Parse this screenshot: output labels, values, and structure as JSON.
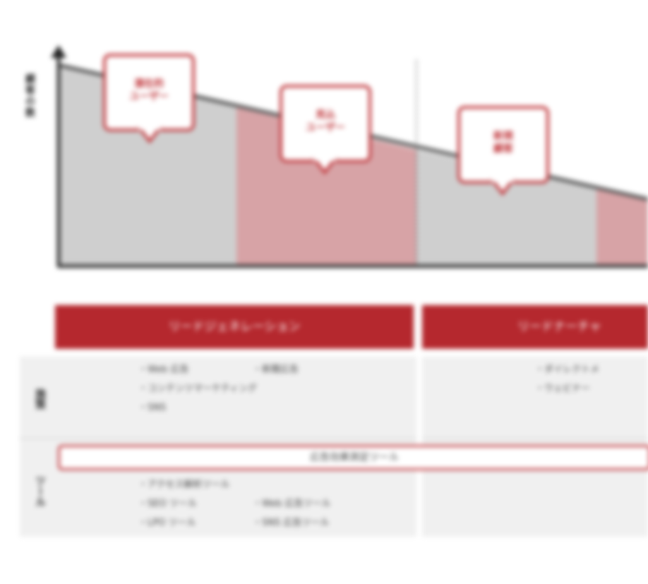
{
  "chart": {
    "yaxis_label": "顧客の数",
    "callouts": [
      {
        "line1": "潜在的",
        "line2": "ユーザー"
      },
      {
        "line1": "見込",
        "line2": "ユーザー"
      },
      {
        "line1": "新規",
        "line2": "顧客"
      }
    ],
    "stage_colors": [
      "#cfcfcf",
      "#d7a3a6",
      "#cfcfcf",
      "#d7a3a6"
    ]
  },
  "table": {
    "stage_headers": [
      "リードジェネレーション",
      "リードナーチャ"
    ],
    "rows": [
      {
        "label": "施策"
      },
      {
        "label": "ツール"
      }
    ],
    "measures_col1_left": [
      "Web 広告",
      "コンテンツマーケティング",
      "SNS"
    ],
    "measures_col1_right": [
      "新聞広告"
    ],
    "measures_col2": [
      "ダイレクトメ",
      "ウェビナー"
    ],
    "tools_strip": "広告効果測定ツール",
    "tools_col1_full": [
      "アクセス解析ツール"
    ],
    "tools_col1_left": [
      "SEO ツール",
      "LPO ツール"
    ],
    "tools_col1_right": [
      "Web 広告ツール",
      "SNS 広告ツール"
    ]
  }
}
